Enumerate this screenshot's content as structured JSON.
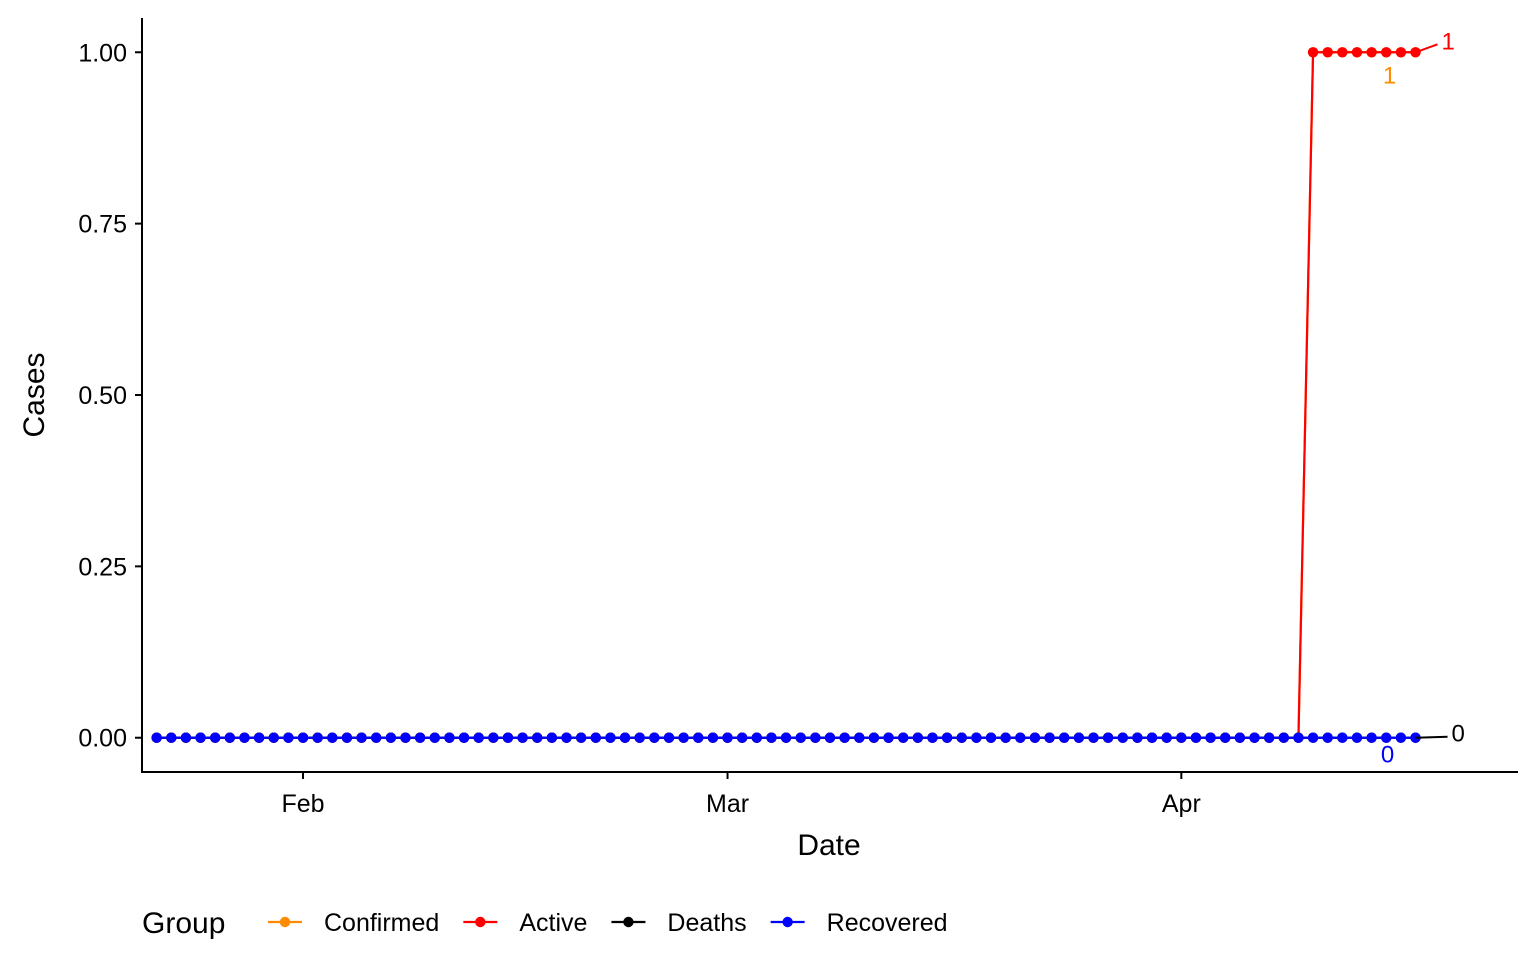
{
  "chart_data": {
    "type": "line",
    "xlabel": "Date",
    "ylabel": "Cases",
    "x_axis": {
      "type": "date",
      "range": [
        "2020-01-21",
        "2020-04-24"
      ],
      "ticks": [
        {
          "label": "Feb",
          "date": "2020-02-01"
        },
        {
          "label": "Mar",
          "date": "2020-03-01"
        },
        {
          "label": "Apr",
          "date": "2020-04-01"
        }
      ]
    },
    "y_axis": {
      "range": [
        -0.05,
        1.05
      ],
      "ticks": [
        {
          "label": "0.00",
          "value": 0
        },
        {
          "label": "0.25",
          "value": 0.25
        },
        {
          "label": "0.50",
          "value": 0.5
        },
        {
          "label": "0.75",
          "value": 0.75
        },
        {
          "label": "1.00",
          "value": 1
        }
      ]
    },
    "date_start": "2020-01-22",
    "date_end": "2020-04-17",
    "grid": false,
    "legend": {
      "title": "Group",
      "placement": "bottom"
    },
    "series": [
      {
        "name": "Confirmed",
        "color": "#FF8C00",
        "nonzero_from": "2020-04-10",
        "value_before": 0,
        "value_after": 1,
        "end_label": "1"
      },
      {
        "name": "Active",
        "color": "#FF0000",
        "nonzero_from": "2020-04-10",
        "value_before": 0,
        "value_after": 1,
        "end_label": "1"
      },
      {
        "name": "Deaths",
        "color": "#000000",
        "nonzero_from": null,
        "value_before": 0,
        "value_after": 0,
        "end_label": "0"
      },
      {
        "name": "Recovered",
        "color": "#0000FF",
        "nonzero_from": null,
        "value_before": 0,
        "value_after": 0,
        "end_label": "0"
      }
    ]
  }
}
